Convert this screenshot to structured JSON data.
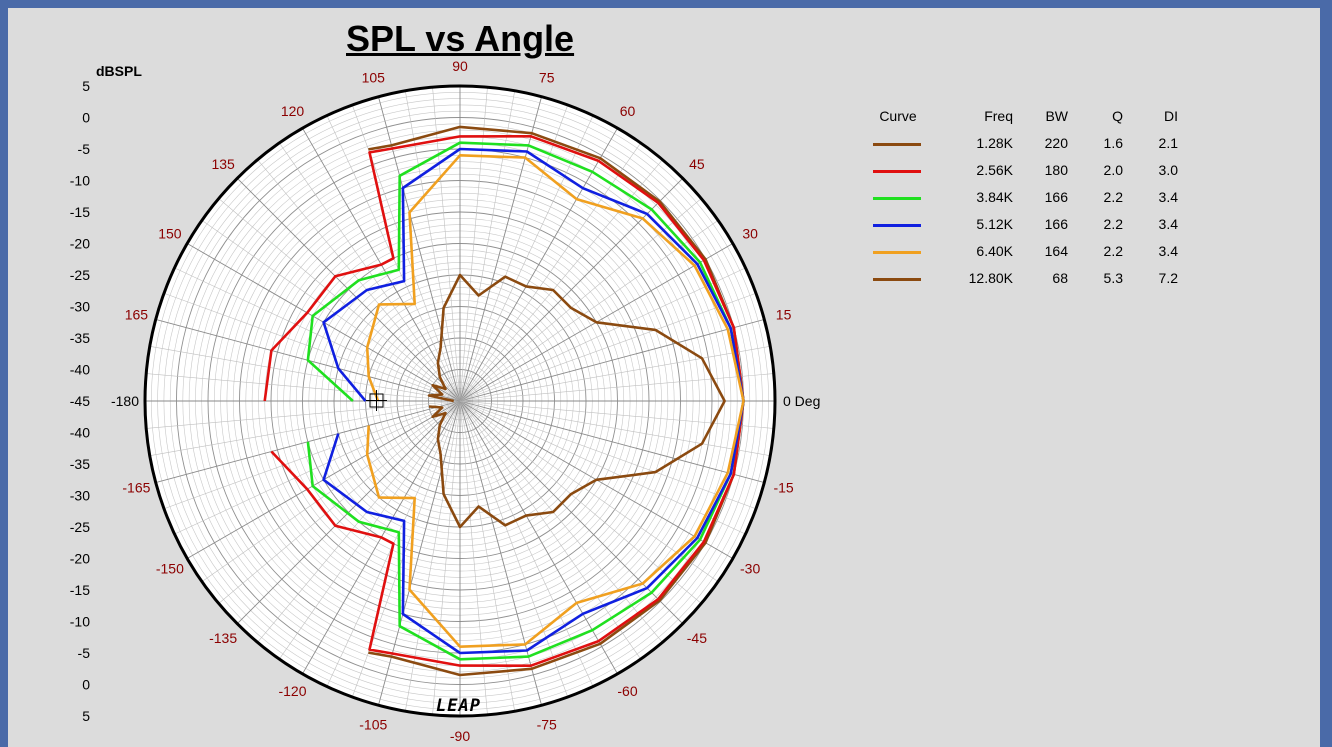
{
  "chart_data": {
    "type": "polar",
    "title": "SPL vs Angle",
    "radial_axis_label": "dBSPL",
    "radial_range": [
      -45,
      5
    ],
    "radial_tick_labels_top": [
      "5",
      "0",
      "-5",
      "-10",
      "-15",
      "-20",
      "-25",
      "-30",
      "-35",
      "-40",
      "-45"
    ],
    "radial_tick_labels_bottom": [
      "-40",
      "-35",
      "-30",
      "-25",
      "-20",
      "-15",
      "-10",
      "-5",
      "0",
      "5"
    ],
    "angle_labels": [
      {
        "deg": 0,
        "label": "0 Deg"
      },
      {
        "deg": 15,
        "label": "15"
      },
      {
        "deg": 30,
        "label": "30"
      },
      {
        "deg": 45,
        "label": "45"
      },
      {
        "deg": 60,
        "label": "60"
      },
      {
        "deg": 75,
        "label": "75"
      },
      {
        "deg": 90,
        "label": "90"
      },
      {
        "deg": 105,
        "label": "105"
      },
      {
        "deg": 120,
        "label": "120"
      },
      {
        "deg": 135,
        "label": "135"
      },
      {
        "deg": 150,
        "label": "150"
      },
      {
        "deg": 165,
        "label": "165"
      },
      {
        "deg": 180,
        "label": "-180"
      },
      {
        "deg": -15,
        "label": "-15"
      },
      {
        "deg": -30,
        "label": "-30"
      },
      {
        "deg": -45,
        "label": "-45"
      },
      {
        "deg": -60,
        "label": "-60"
      },
      {
        "deg": -75,
        "label": "-75"
      },
      {
        "deg": -90,
        "label": "-90"
      },
      {
        "deg": -105,
        "label": "-105"
      },
      {
        "deg": -120,
        "label": "-120"
      },
      {
        "deg": -135,
        "label": "-135"
      },
      {
        "deg": -150,
        "label": "-150"
      },
      {
        "deg": -165,
        "label": "-165"
      }
    ],
    "series": [
      {
        "name": "1.28K",
        "color": "#8b4a10",
        "points": [
          [
            0,
            0
          ],
          [
            15,
            0
          ],
          [
            30,
            0
          ],
          [
            45,
            -0.2
          ],
          [
            60,
            -0.5
          ],
          [
            75,
            -1
          ],
          [
            90,
            -1.5
          ],
          [
            105,
            -3
          ],
          [
            110,
            -2.5
          ]
        ]
      },
      {
        "name": "2.56K",
        "color": "#e01010",
        "points": [
          [
            0,
            0
          ],
          [
            15,
            0
          ],
          [
            30,
            -0.3
          ],
          [
            45,
            -0.5
          ],
          [
            60,
            -1
          ],
          [
            75,
            -1.5
          ],
          [
            90,
            -3
          ],
          [
            105,
            -3.5
          ],
          [
            110,
            -3
          ],
          [
            115,
            -20
          ],
          [
            120,
            -20
          ],
          [
            135,
            -17
          ],
          [
            150,
            -17
          ],
          [
            165,
            -14
          ],
          [
            180,
            -14
          ]
        ]
      },
      {
        "name": "3.84K",
        "color": "#20e020",
        "points": [
          [
            0,
            0
          ],
          [
            15,
            -0.5
          ],
          [
            30,
            -1
          ],
          [
            45,
            -2
          ],
          [
            60,
            -3
          ],
          [
            75,
            -3
          ],
          [
            90,
            -4
          ],
          [
            105,
            -8
          ],
          [
            115,
            -22
          ],
          [
            130,
            -20
          ],
          [
            150,
            -18
          ],
          [
            165,
            -20
          ],
          [
            180,
            -28
          ]
        ]
      },
      {
        "name": "5.12K",
        "color": "#1020e0",
        "points": [
          [
            0,
            0
          ],
          [
            15,
            -0.5
          ],
          [
            30,
            -1.5
          ],
          [
            45,
            -3
          ],
          [
            60,
            -6
          ],
          [
            75,
            -4
          ],
          [
            90,
            -5
          ],
          [
            105,
            -10
          ],
          [
            115,
            -24
          ],
          [
            130,
            -22
          ],
          [
            150,
            -20
          ],
          [
            165,
            -25
          ],
          [
            180,
            -30
          ]
        ]
      },
      {
        "name": "6.40K",
        "color": "#f0a020",
        "points": [
          [
            0,
            0
          ],
          [
            15,
            -1
          ],
          [
            30,
            -2
          ],
          [
            45,
            -4
          ],
          [
            60,
            -8
          ],
          [
            75,
            -5
          ],
          [
            90,
            -6
          ],
          [
            105,
            -14
          ],
          [
            115,
            -28
          ],
          [
            130,
            -25
          ],
          [
            150,
            -28
          ],
          [
            165,
            -30
          ],
          [
            180,
            -32
          ]
        ]
      },
      {
        "name": "12.80K",
        "color": "#8b4a10",
        "points": [
          [
            0,
            -3
          ],
          [
            10,
            -6
          ],
          [
            20,
            -12
          ],
          [
            30,
            -20
          ],
          [
            40,
            -22
          ],
          [
            50,
            -22
          ],
          [
            60,
            -24
          ],
          [
            70,
            -24
          ],
          [
            80,
            -28
          ],
          [
            90,
            -25
          ],
          [
            100,
            -30
          ],
          [
            110,
            -36
          ],
          [
            120,
            -38
          ],
          [
            130,
            -40
          ],
          [
            140,
            -42
          ],
          [
            150,
            -40
          ],
          [
            160,
            -42
          ],
          [
            170,
            -40
          ],
          [
            180,
            -44
          ]
        ]
      }
    ]
  },
  "legend": {
    "headers": {
      "curve": "Curve",
      "freq": "Freq",
      "bw": "BW",
      "q": "Q",
      "di": "DI"
    },
    "rows": [
      {
        "color": "#8b4a10",
        "freq": "1.28K",
        "bw": "220",
        "q": "1.6",
        "di": "2.1"
      },
      {
        "color": "#e01010",
        "freq": "2.56K",
        "bw": "180",
        "q": "2.0",
        "di": "3.0"
      },
      {
        "color": "#20e020",
        "freq": "3.84K",
        "bw": "166",
        "q": "2.2",
        "di": "3.4"
      },
      {
        "color": "#1020e0",
        "freq": "5.12K",
        "bw": "166",
        "q": "2.2",
        "di": "3.4"
      },
      {
        "color": "#f0a020",
        "freq": "6.40K",
        "bw": "164",
        "q": "2.2",
        "di": "3.4"
      },
      {
        "color": "#8b4a10",
        "freq": "12.80K",
        "bw": "68",
        "q": "5.3",
        "di": "7.2"
      }
    ]
  },
  "logo": {
    "text": "LEAP"
  }
}
